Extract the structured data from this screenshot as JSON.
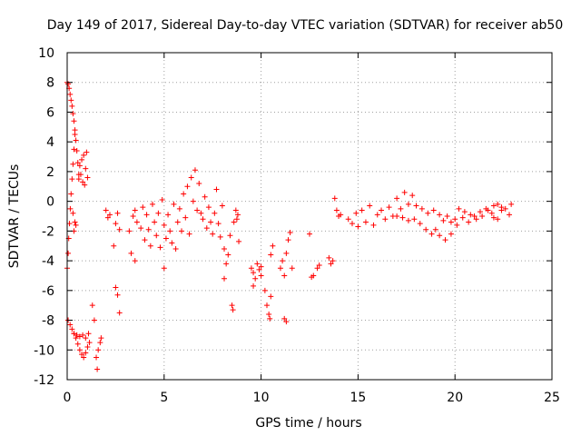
{
  "chart_data": {
    "type": "scatter",
    "title": "Day 149 of 2017, Sidereal Day-to-day VTEC variation (SDTVAR) for receiver ab50",
    "xlabel": "GPS time / hours",
    "ylabel": "SDTVAR / TECUs",
    "xlim": [
      0,
      25
    ],
    "ylim": [
      -12,
      10
    ],
    "xticks": [
      "0",
      "5",
      "10",
      "15",
      "20",
      "25"
    ],
    "yticks": [
      "-12",
      "-10",
      "-8",
      "-6",
      "-4",
      "-2",
      "0",
      "2",
      "4",
      "6",
      "8",
      "10"
    ],
    "grid": true,
    "marker": "+",
    "color": "#ff0000",
    "series": [
      {
        "name": "SDTVAR",
        "points": [
          [
            0.0,
            8.0
          ],
          [
            0.05,
            7.9
          ],
          [
            0.1,
            7.6
          ],
          [
            0.15,
            7.2
          ],
          [
            0.2,
            6.8
          ],
          [
            0.25,
            6.4
          ],
          [
            0.3,
            5.9
          ],
          [
            0.35,
            5.4
          ],
          [
            0.4,
            4.8
          ],
          [
            0.45,
            4.1
          ],
          [
            0.5,
            3.4
          ],
          [
            0.55,
            2.6
          ],
          [
            0.6,
            1.8
          ],
          [
            0.0,
            -4.5
          ],
          [
            0.05,
            -3.5
          ],
          [
            0.08,
            -2.5
          ],
          [
            0.12,
            -1.5
          ],
          [
            0.16,
            -0.5
          ],
          [
            0.2,
            0.5
          ],
          [
            0.25,
            1.5
          ],
          [
            0.3,
            2.5
          ],
          [
            0.35,
            3.5
          ],
          [
            0.4,
            4.5
          ],
          [
            0.05,
            -8.0
          ],
          [
            0.15,
            -8.3
          ],
          [
            0.25,
            -8.6
          ],
          [
            0.35,
            -8.9
          ],
          [
            0.45,
            -9.2
          ],
          [
            0.55,
            -9.6
          ],
          [
            0.65,
            -10.0
          ],
          [
            0.75,
            -10.3
          ],
          [
            0.85,
            -10.5
          ],
          [
            0.95,
            -10.2
          ],
          [
            1.05,
            -9.8
          ],
          [
            1.15,
            -9.5
          ],
          [
            0.35,
            -8.9
          ],
          [
            0.5,
            -9.0
          ],
          [
            0.65,
            -9.1
          ],
          [
            0.8,
            -9.0
          ],
          [
            0.95,
            -9.2
          ],
          [
            1.1,
            -8.9
          ],
          [
            0.6,
            1.5
          ],
          [
            0.65,
            2.4
          ],
          [
            0.7,
            1.8
          ],
          [
            0.75,
            2.8
          ],
          [
            0.8,
            1.3
          ],
          [
            0.85,
            3.1
          ],
          [
            0.9,
            1.1
          ],
          [
            0.95,
            2.2
          ],
          [
            1.0,
            3.3
          ],
          [
            1.05,
            1.6
          ],
          [
            0.3,
            -0.8
          ],
          [
            0.35,
            -2.0
          ],
          [
            0.4,
            -1.4
          ],
          [
            0.45,
            -1.6
          ],
          [
            1.3,
            -7.0
          ],
          [
            1.4,
            -8.0
          ],
          [
            1.5,
            -10.5
          ],
          [
            1.55,
            -11.3
          ],
          [
            1.6,
            -10.0
          ],
          [
            1.7,
            -9.5
          ],
          [
            1.75,
            -9.2
          ],
          [
            2.0,
            -0.6
          ],
          [
            2.1,
            -1.1
          ],
          [
            2.2,
            -0.9
          ],
          [
            2.4,
            -3.0
          ],
          [
            2.5,
            -1.5
          ],
          [
            2.6,
            -0.8
          ],
          [
            2.7,
            -1.9
          ],
          [
            2.5,
            -5.8
          ],
          [
            2.6,
            -6.3
          ],
          [
            2.7,
            -7.5
          ],
          [
            3.2,
            -2.0
          ],
          [
            3.3,
            -3.5
          ],
          [
            3.4,
            -1.0
          ],
          [
            3.5,
            -4.0
          ],
          [
            3.5,
            -0.6
          ],
          [
            3.6,
            -1.4
          ],
          [
            3.8,
            -1.8
          ],
          [
            3.9,
            -0.4
          ],
          [
            4.0,
            -2.6
          ],
          [
            4.1,
            -0.9
          ],
          [
            4.2,
            -1.9
          ],
          [
            4.3,
            -3.0
          ],
          [
            4.4,
            -0.2
          ],
          [
            4.5,
            -1.4
          ],
          [
            4.6,
            -2.3
          ],
          [
            4.7,
            -0.8
          ],
          [
            4.8,
            -3.1
          ],
          [
            4.9,
            0.1
          ],
          [
            5.0,
            -1.6
          ],
          [
            5.1,
            -2.5
          ],
          [
            5.2,
            -0.9
          ],
          [
            5.3,
            -2.0
          ],
          [
            5.0,
            -4.5
          ],
          [
            5.4,
            -2.8
          ],
          [
            5.5,
            -0.2
          ],
          [
            5.6,
            -3.2
          ],
          [
            5.7,
            -1.4
          ],
          [
            5.8,
            -0.5
          ],
          [
            5.9,
            -2.0
          ],
          [
            6.0,
            0.5
          ],
          [
            6.1,
            -1.1
          ],
          [
            6.2,
            1.0
          ],
          [
            6.3,
            -2.2
          ],
          [
            6.4,
            1.6
          ],
          [
            6.5,
            0.0
          ],
          [
            6.6,
            2.1
          ],
          [
            6.7,
            -0.6
          ],
          [
            6.8,
            1.2
          ],
          [
            6.9,
            -0.8
          ],
          [
            7.0,
            -1.2
          ],
          [
            7.1,
            0.3
          ],
          [
            7.2,
            -1.8
          ],
          [
            7.3,
            -0.4
          ],
          [
            7.4,
            -1.4
          ],
          [
            7.5,
            -2.2
          ],
          [
            7.6,
            -0.8
          ],
          [
            7.7,
            0.8
          ],
          [
            7.8,
            -1.5
          ],
          [
            7.9,
            -2.4
          ],
          [
            8.0,
            -0.3
          ],
          [
            8.1,
            -3.2
          ],
          [
            8.2,
            -4.2
          ],
          [
            8.3,
            -3.6
          ],
          [
            8.4,
            -2.3
          ],
          [
            8.1,
            -5.2
          ],
          [
            8.5,
            -7.0
          ],
          [
            8.55,
            -7.3
          ],
          [
            8.6,
            -1.4
          ],
          [
            8.7,
            -0.6
          ],
          [
            8.8,
            -0.9
          ],
          [
            8.85,
            -2.7
          ],
          [
            8.75,
            -1.2
          ],
          [
            9.5,
            -4.5
          ],
          [
            9.6,
            -4.8
          ],
          [
            9.7,
            -5.2
          ],
          [
            9.8,
            -4.2
          ],
          [
            9.9,
            -4.6
          ],
          [
            10.0,
            -4.4
          ],
          [
            9.6,
            -5.7
          ],
          [
            10.0,
            -5.0
          ],
          [
            10.2,
            -6.0
          ],
          [
            10.3,
            -7.0
          ],
          [
            10.4,
            -7.6
          ],
          [
            10.45,
            -7.9
          ],
          [
            10.5,
            -3.6
          ],
          [
            10.6,
            -3.0
          ],
          [
            10.5,
            -6.4
          ],
          [
            11.0,
            -4.5
          ],
          [
            11.1,
            -4.0
          ],
          [
            11.2,
            -5.0
          ],
          [
            11.3,
            -3.5
          ],
          [
            11.4,
            -2.6
          ],
          [
            11.5,
            -2.1
          ],
          [
            11.3,
            -8.1
          ],
          [
            11.2,
            -7.9
          ],
          [
            11.6,
            -4.5
          ],
          [
            12.5,
            -2.2
          ],
          [
            12.6,
            -5.1
          ],
          [
            12.7,
            -5.0
          ],
          [
            12.9,
            -4.5
          ],
          [
            13.0,
            -4.3
          ],
          [
            13.5,
            -3.8
          ],
          [
            13.6,
            -4.2
          ],
          [
            13.7,
            -4.0
          ],
          [
            13.8,
            0.2
          ],
          [
            13.9,
            -0.6
          ],
          [
            14.0,
            -1.0
          ],
          [
            14.1,
            -0.9
          ],
          [
            14.5,
            -1.2
          ],
          [
            14.7,
            -1.5
          ],
          [
            14.9,
            -0.8
          ],
          [
            15.0,
            -1.7
          ],
          [
            15.2,
            -0.6
          ],
          [
            15.4,
            -1.4
          ],
          [
            15.6,
            -0.3
          ],
          [
            15.8,
            -1.6
          ],
          [
            16.0,
            -0.9
          ],
          [
            16.2,
            -0.6
          ],
          [
            16.4,
            -1.2
          ],
          [
            16.6,
            -0.4
          ],
          [
            16.8,
            -1.0
          ],
          [
            17.0,
            0.2
          ],
          [
            17.2,
            -0.5
          ],
          [
            17.4,
            0.6
          ],
          [
            17.6,
            -0.2
          ],
          [
            17.8,
            0.4
          ],
          [
            17.0,
            -1.0
          ],
          [
            17.3,
            -1.1
          ],
          [
            17.6,
            -1.3
          ],
          [
            17.9,
            -1.2
          ],
          [
            18.2,
            -1.5
          ],
          [
            18.5,
            -1.9
          ],
          [
            18.8,
            -2.2
          ],
          [
            19.0,
            -1.9
          ],
          [
            19.2,
            -2.3
          ],
          [
            18.0,
            -0.3
          ],
          [
            18.3,
            -0.5
          ],
          [
            18.6,
            -0.8
          ],
          [
            18.9,
            -0.6
          ],
          [
            19.2,
            -0.9
          ],
          [
            19.4,
            -1.3
          ],
          [
            19.6,
            -1.0
          ],
          [
            19.8,
            -1.4
          ],
          [
            20.0,
            -1.2
          ],
          [
            19.5,
            -2.6
          ],
          [
            19.8,
            -2.2
          ],
          [
            20.1,
            -1.6
          ],
          [
            20.4,
            -1.1
          ],
          [
            20.7,
            -1.4
          ],
          [
            21.0,
            -1.0
          ],
          [
            21.3,
            -0.7
          ],
          [
            21.6,
            -0.5
          ],
          [
            21.9,
            -0.8
          ],
          [
            20.2,
            -0.5
          ],
          [
            20.5,
            -0.7
          ],
          [
            20.8,
            -0.9
          ],
          [
            21.1,
            -1.2
          ],
          [
            21.4,
            -1.0
          ],
          [
            21.7,
            -0.6
          ],
          [
            22.0,
            -0.3
          ],
          [
            22.2,
            -0.2
          ],
          [
            22.4,
            -0.6
          ],
          [
            22.0,
            -1.1
          ],
          [
            22.2,
            -1.2
          ],
          [
            22.4,
            -0.4
          ],
          [
            22.6,
            -0.5
          ],
          [
            22.8,
            -0.9
          ],
          [
            22.9,
            -0.2
          ]
        ]
      }
    ]
  }
}
